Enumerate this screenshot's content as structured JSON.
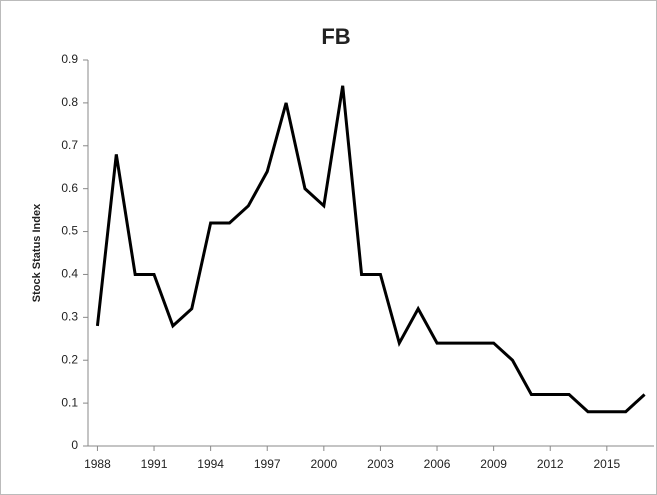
{
  "chart_data": {
    "type": "line",
    "title": "FB",
    "y_label": "Stock Status Index",
    "x": [
      1988,
      1989,
      1990,
      1991,
      1992,
      1993,
      1994,
      1995,
      1996,
      1997,
      1998,
      1999,
      2000,
      2001,
      2002,
      2003,
      2004,
      2005,
      2006,
      2007,
      2008,
      2009,
      2010,
      2011,
      2012,
      2013,
      2014,
      2015,
      2016,
      2017
    ],
    "series": [
      {
        "name": "FB",
        "color": "#000000",
        "values": [
          0.28,
          0.68,
          0.4,
          0.4,
          0.28,
          0.32,
          0.52,
          0.52,
          0.56,
          0.64,
          0.8,
          0.6,
          0.56,
          0.84,
          0.4,
          0.4,
          0.24,
          0.32,
          0.24,
          0.24,
          0.24,
          0.24,
          0.2,
          0.12,
          0.12,
          0.12,
          0.08,
          0.08,
          0.08,
          0.12
        ]
      }
    ],
    "xlim": [
      1987.5,
      2017.5
    ],
    "xticks": [
      1988,
      1991,
      1994,
      1997,
      2000,
      2003,
      2006,
      2009,
      2012,
      2015
    ],
    "ylim": [
      0,
      0.9
    ],
    "yticks": [
      0,
      0.1,
      0.2,
      0.3,
      0.4,
      0.5,
      0.6,
      0.7,
      0.8,
      0.9
    ],
    "grid": false
  }
}
